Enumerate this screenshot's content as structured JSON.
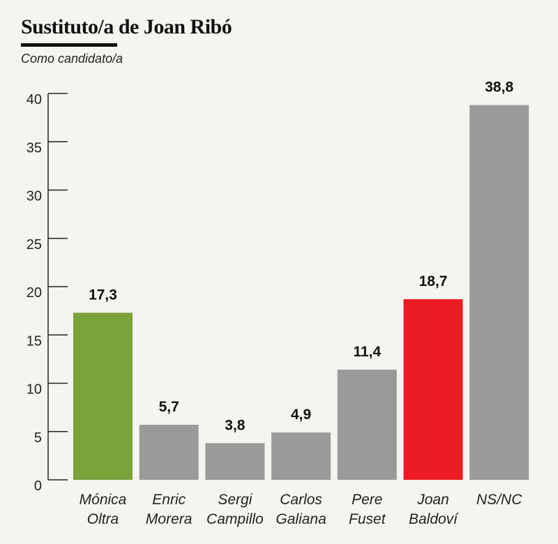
{
  "header": {
    "title": "Sustituto/a de Joan Ribó",
    "subtitle": "Como candidato/a"
  },
  "chart_data": {
    "type": "bar",
    "categories": [
      [
        "Mónica",
        "Oltra"
      ],
      [
        "Enric",
        "Morera"
      ],
      [
        "Sergi",
        "Campillo"
      ],
      [
        "Carlos",
        "Galiana"
      ],
      [
        "Pere",
        "Fuset"
      ],
      [
        "Joan",
        "Baldoví"
      ],
      [
        "NS/NC"
      ]
    ],
    "values": [
      17.3,
      5.7,
      3.8,
      4.9,
      11.4,
      18.7,
      38.8
    ],
    "value_labels": [
      "17,3",
      "5,7",
      "3,8",
      "4,9",
      "11,4",
      "18,7",
      "38,8"
    ],
    "colors": [
      "#7aa33a",
      "#9a9a9a",
      "#9a9a9a",
      "#9a9a9a",
      "#9a9a9a",
      "#ec1c24",
      "#9a9a9a"
    ],
    "ylim": [
      0,
      40
    ],
    "yticks": [
      0,
      5,
      10,
      15,
      20,
      25,
      30,
      35,
      40
    ],
    "grid": false,
    "legend": false
  }
}
